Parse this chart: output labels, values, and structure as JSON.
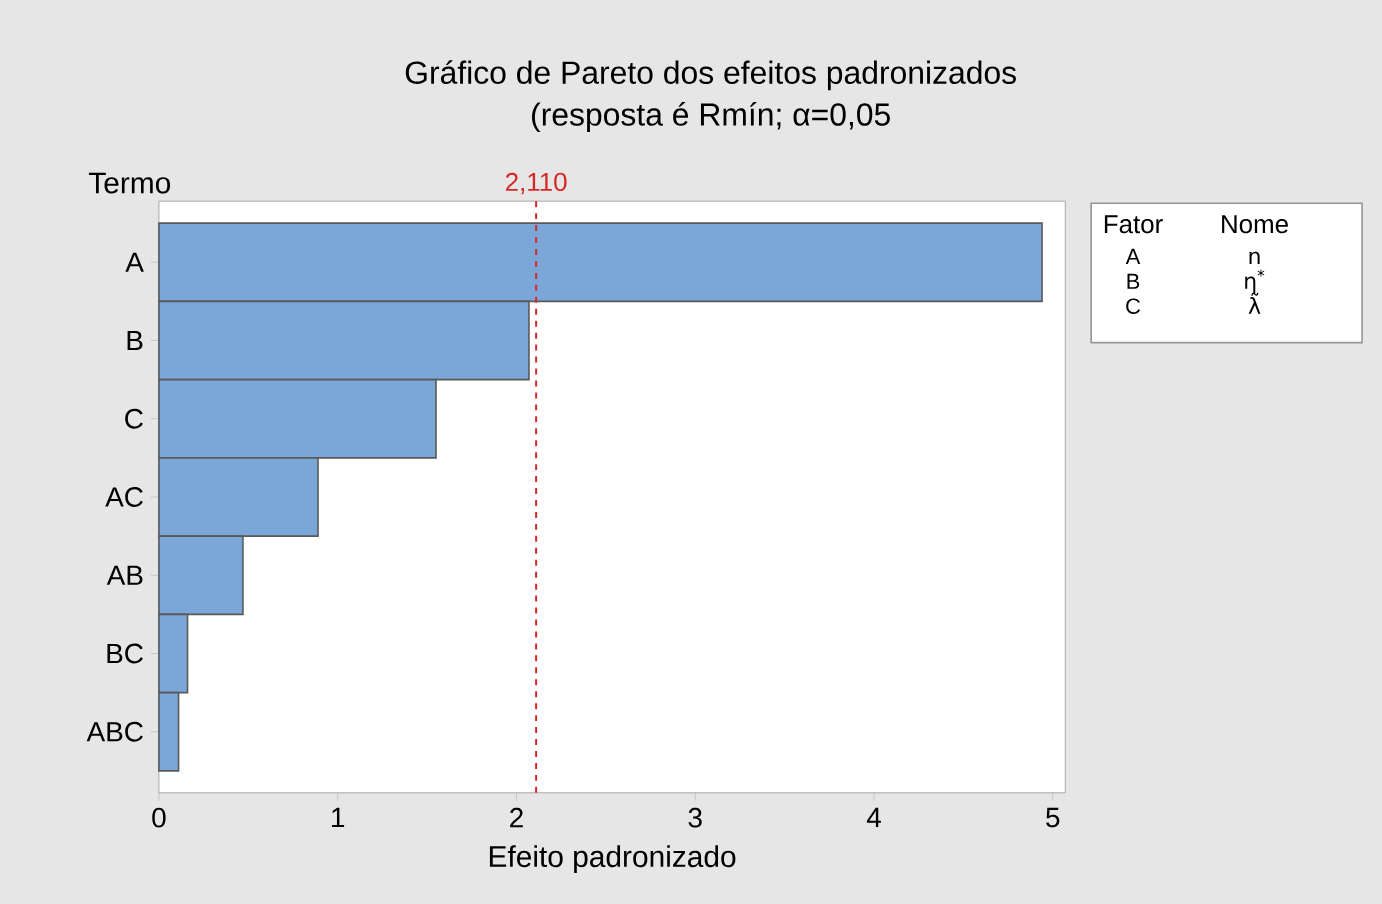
{
  "chart_data": {
    "type": "bar",
    "orientation": "horizontal",
    "title": "Gráfico de Pareto dos efeitos padronizados",
    "subtitle": "(resposta é Rmín; α=0,05",
    "xlabel": "Efeito padronizado",
    "ylabel": "Termo",
    "categories": [
      "A",
      "B",
      "C",
      "AC",
      "AB",
      "BC",
      "ABC"
    ],
    "values": [
      4.94,
      2.07,
      1.55,
      0.89,
      0.47,
      0.16,
      0.11
    ],
    "color": "#7ba7d8",
    "xlim": [
      0,
      5.07
    ],
    "xticks": [
      0,
      1,
      2,
      3,
      4,
      5
    ],
    "ref_lines": [
      {
        "axis": "x",
        "value": 2.11,
        "label": "2,110",
        "color": "#d62728",
        "line_style": "dashed"
      }
    ],
    "annotations": [
      "Fator",
      "Nome",
      "A",
      "n",
      "B",
      "η$^{*}$",
      "C",
      "λ̃"
    ],
    "grid": false
  }
}
